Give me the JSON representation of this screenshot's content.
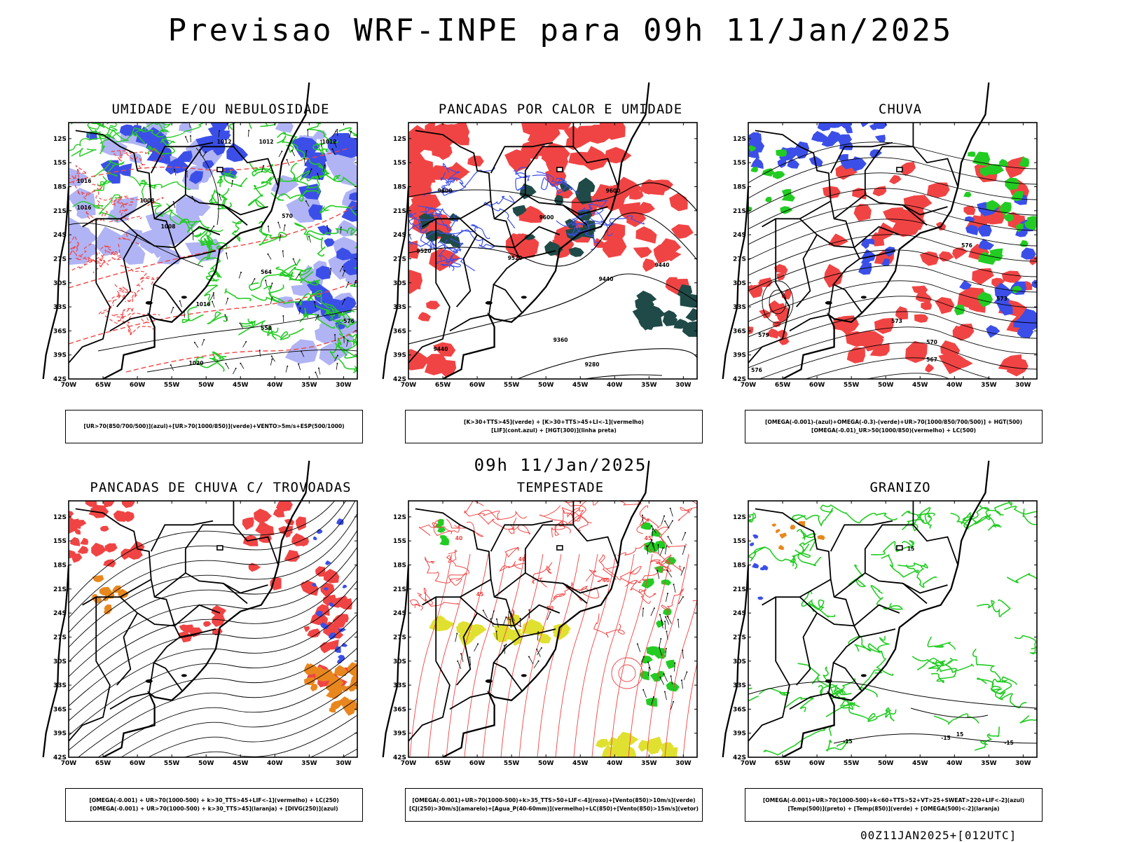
{
  "header": {
    "title": "Previsao WRF-INPE  para 09h 11/Jan/2025",
    "mid_date": "09h 11/Jan/2025",
    "run_id": "00Z11JAN2025+[012UTC]"
  },
  "axes": {
    "lat_labels": [
      "12S",
      "15S",
      "18S",
      "21S",
      "24S",
      "27S",
      "30S",
      "33S",
      "36S",
      "39S",
      "42S"
    ],
    "lon_labels": [
      "70W",
      "65W",
      "60W",
      "55W",
      "50W",
      "45W",
      "40W",
      "35W",
      "30W"
    ]
  },
  "colors": {
    "blue": "#3b4fe8",
    "light_blue": "#b0b4f4",
    "green": "#22cc22",
    "red": "#f04444",
    "dark_teal": "#1f4a48",
    "orange": "#e8871e",
    "yellow": "#e0e030",
    "black": "#000000"
  },
  "panels": [
    {
      "title": "UMIDADE E/OU NEBULOSIDADE",
      "legend": [
        "[UR>70(850/700/500)](azul)+[UR>70(1000/850)](verde)+VENTO>5m/s+ESP(500/1000)"
      ],
      "contour_labels": [
        "1012",
        "1012",
        "1012",
        "1008",
        "1008",
        "1016",
        "1016",
        "1016",
        "1020",
        "576",
        "570",
        "564",
        "558"
      ]
    },
    {
      "title": "PANCADAS POR CALOR E UMIDADE",
      "legend": [
        "[K>30+TTS>45](verde) + [K>30+TTS>45+LI<-1](vermelho)",
        "[LIF](cont.azul) + [HGT(300)](linha preta)"
      ],
      "contour_labels": [
        "9600",
        "9600",
        "9600",
        "9520",
        "9520",
        "9440",
        "9440",
        "9440",
        "9360",
        "9280"
      ]
    },
    {
      "title": "CHUVA",
      "legend": [
        "[OMEGA(-0.001)-(azul)+OMEGA(-0.3)-(verde)+UR>70(1000/850/700/500)] + HGT(500)",
        "[OMEGA(-0.01)_UR>50(1000/850)(vermelho) + LC(500)"
      ],
      "contour_labels": [
        "576",
        "573",
        "573",
        "570",
        "567",
        "579",
        "576"
      ]
    },
    {
      "title": "PANCADAS DE CHUVA C/ TROVOADAS",
      "legend": [
        "[OMEGA(-0.001) + UR>70(1000-500) + k>30_TTS>45+LIF<-1](vermelho) + LC(250)",
        "[OMEGA(-0.001) + UR>70(1000-500) + k>30_TTS>45](laranja) + [DIVG(250)](azul)"
      ],
      "contour_labels": []
    },
    {
      "title": "TEMPESTADE",
      "legend": [
        "[OMEGA(-0.001)+UR>70(1000-500)+k>35_TTS>50+LIF<-4](roxo)+[Vento(850)>10m/s](verde)",
        "[CJ(250)>30m/s](amarelo)+[Agua_P(40-60mm)](vermelho)+LC(850)+[Vento(850)>15m/s](vetor)"
      ],
      "contour_labels": [
        "40",
        "40",
        "40",
        "45",
        "45",
        "50"
      ]
    },
    {
      "title": "GRANIZO",
      "legend": [
        "[OMEGA(-0.001)+UR>70(1000-500)+k<60+TTS>52+VT>25+SWEAT>220+LIF<-2](azul)",
        "[Temp(500)](preto) + [Temp(850)](verde) + [OMEGA(500)<-2](laranja)"
      ],
      "contour_labels": [
        "15",
        "15",
        "-15",
        "-15",
        "-15"
      ]
    }
  ]
}
